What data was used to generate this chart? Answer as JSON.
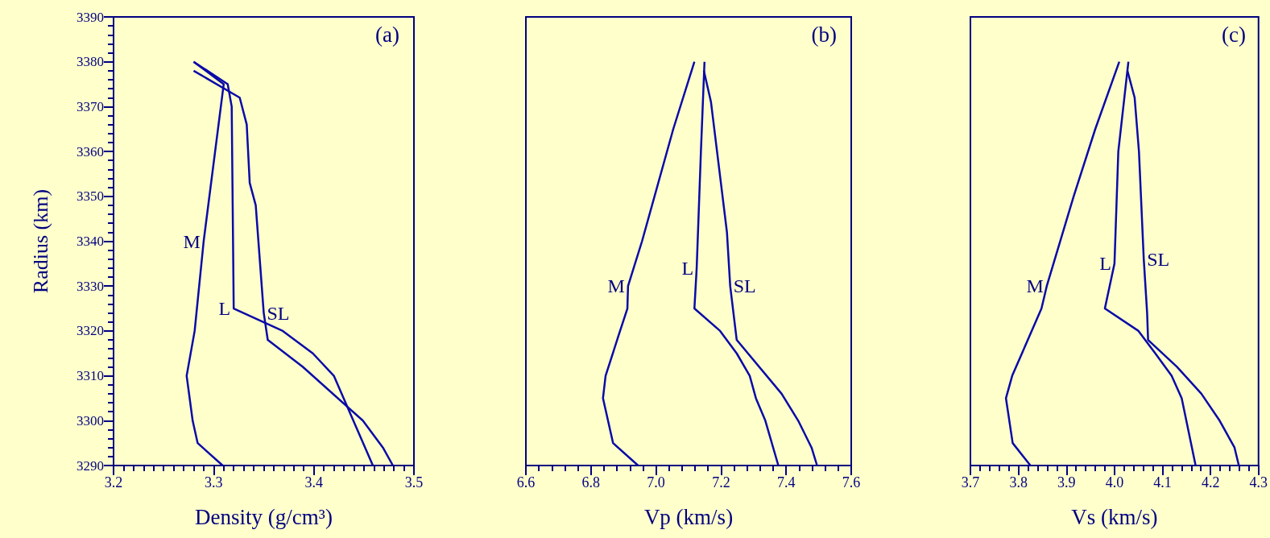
{
  "chart_data": [
    {
      "type": "line",
      "annotations": [
        "(a)"
      ],
      "xlabel": "Density (g/cm³)",
      "ylabel": "Radius (km)",
      "xlim": [
        3.2,
        3.5
      ],
      "xticks": [
        3.2,
        3.3,
        3.4,
        3.5
      ],
      "ylim": [
        3290,
        3390
      ],
      "yticks": [
        3290,
        3300,
        3310,
        3320,
        3330,
        3340,
        3350,
        3360,
        3370,
        3380,
        3390
      ],
      "grid": false,
      "legend": false,
      "marker": "none",
      "line_style": "solid",
      "series": [
        {
          "name": "M",
          "color": "#0a0aa8",
          "x": [
            3.28,
            3.31,
            3.29,
            3.281,
            3.273,
            3.279,
            3.284,
            3.309
          ],
          "values": [
            3380,
            3375,
            3340,
            3320,
            3310,
            3300,
            3295,
            3290
          ]
        },
        {
          "name": "L",
          "color": "#0a0aa8",
          "x": [
            3.28,
            3.314,
            3.318,
            3.32,
            3.369,
            3.399,
            3.42,
            3.459
          ],
          "values": [
            3380,
            3375,
            3370,
            3325,
            3320,
            3315,
            3310,
            3290
          ]
        },
        {
          "name": "SL",
          "color": "#0a0aa8",
          "x": [
            3.28,
            3.326,
            3.333,
            3.336,
            3.342,
            3.35,
            3.354,
            3.389,
            3.449,
            3.469,
            3.479
          ],
          "values": [
            3378,
            3372,
            3366,
            3353,
            3348,
            3324,
            3318,
            3312,
            3300,
            3294,
            3290
          ]
        }
      ]
    },
    {
      "type": "line",
      "annotations": [
        "(b)"
      ],
      "xlabel": "Vp (km/s)",
      "xlim": [
        6.6,
        7.6
      ],
      "xticks": [
        6.6,
        6.8,
        {
          "value": 7,
          "label": "7.0"
        },
        7.2,
        7.4,
        7.6
      ],
      "ylim": [
        3290,
        3390
      ],
      "tick_labels": "x",
      "grid": false,
      "legend": false,
      "marker": "none",
      "line_style": "solid",
      "series": [
        {
          "name": "M",
          "color": "#0a0aa8",
          "x": [
            7.118,
            7.053,
            6.957,
            6.914,
            6.912,
            6.885,
            6.845,
            6.837,
            6.868,
            6.945
          ],
          "values": [
            3380,
            3365,
            3340,
            3330,
            3325,
            3319,
            3310,
            3305,
            3295,
            3290
          ]
        },
        {
          "name": "L",
          "color": "#0a0aa8",
          "x": [
            7.149,
            7.138,
            7.125,
            7.118,
            7.197,
            7.248,
            7.288,
            7.307,
            7.336,
            7.376
          ],
          "values": [
            3380,
            3360,
            3334,
            3325,
            3320,
            3315,
            3310,
            3305,
            3300,
            3290
          ]
        },
        {
          "name": "SL",
          "color": "#0a0aa8",
          "x": [
            7.147,
            7.169,
            7.218,
            7.228,
            7.248,
            7.386,
            7.437,
            7.478,
            7.495
          ],
          "values": [
            3378,
            3371,
            3342,
            3330,
            3318,
            3306,
            3300,
            3294,
            3290
          ]
        }
      ]
    },
    {
      "type": "line",
      "annotations": [
        "(c)"
      ],
      "xlabel": "Vs (km/s)",
      "xlim": [
        3.7,
        4.3
      ],
      "xticks": [
        3.7,
        3.8,
        3.9,
        {
          "value": 4,
          "label": "4.0"
        },
        4.1,
        4.2,
        4.3
      ],
      "ylim": [
        3290,
        3390
      ],
      "tick_labels": "x",
      "grid": false,
      "legend": false,
      "marker": "none",
      "line_style": "solid",
      "series": [
        {
          "name": "M",
          "color": "#0a0aa8",
          "x": [
            4.01,
            3.96,
            3.915,
            3.859,
            3.848,
            3.787,
            3.774,
            3.788,
            3.825
          ],
          "values": [
            3380,
            3365,
            3350,
            3330,
            3325,
            3310,
            3305,
            3295,
            3290
          ]
        },
        {
          "name": "L",
          "color": "#0a0aa8",
          "x": [
            4.029,
            4.008,
            4.0,
            3.98,
            4.05,
            4.085,
            4.119,
            4.14,
            4.169
          ],
          "values": [
            3380,
            3360,
            3335,
            3325,
            3320,
            3315,
            3310,
            3305,
            3290
          ]
        },
        {
          "name": "SL",
          "color": "#0a0aa8",
          "x": [
            4.027,
            4.042,
            4.051,
            4.061,
            4.068,
            4.07,
            4.13,
            4.181,
            4.219,
            4.25,
            4.259
          ],
          "values": [
            3378,
            3372,
            3360,
            3336,
            3324,
            3318,
            3312,
            3306,
            3300,
            3294,
            3290
          ]
        }
      ]
    }
  ]
}
